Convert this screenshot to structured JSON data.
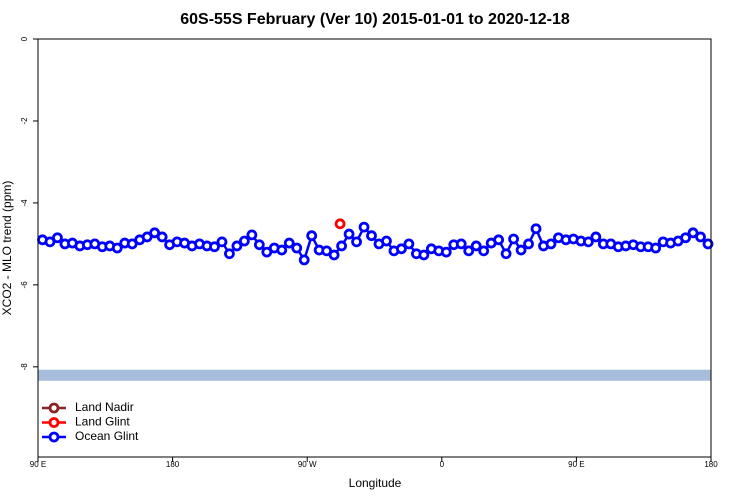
{
  "chart_data": {
    "type": "line",
    "title": "60S-55S February (Ver 10)   2015-01-01 to 2020-12-18",
    "xlabel": "Longitude",
    "ylabel": "XCO2 - MLO trend (ppm)",
    "xlim": [
      90,
      540
    ],
    "ylim": [
      -10.2,
      0
    ],
    "xticks": [
      {
        "value": 90,
        "label": "90 E"
      },
      180,
      {
        "value": 270,
        "label": "90 W"
      },
      {
        "value": 360,
        "label": "0"
      },
      {
        "value": 450,
        "label": "90 E"
      },
      {
        "value": 540,
        "label": "180"
      }
    ],
    "yticks": [
      0,
      -2,
      -4,
      -6,
      -8
    ],
    "coverage_band": {
      "ymin": -8.34,
      "ymax": -8.07,
      "color": "#a6bddb"
    },
    "legend": "bottom-left",
    "series": [
      {
        "name": "Land Nadir",
        "color": "#8b2323",
        "x": [],
        "values": []
      },
      {
        "name": "Land Glint",
        "color": "#ff0000",
        "x": [
          292
        ],
        "values": [
          -4.51
        ]
      },
      {
        "name": "Ocean Glint",
        "color": "#0000ff",
        "x": [
          93,
          98,
          103,
          108,
          113,
          118,
          123,
          128,
          133,
          138,
          143,
          148,
          153,
          158,
          163,
          168,
          173,
          178,
          183,
          188,
          193,
          198,
          203,
          208,
          213,
          218,
          223,
          228,
          233,
          238,
          243,
          248,
          253,
          258,
          263,
          268,
          273,
          278,
          283,
          288,
          293,
          298,
          303,
          308,
          313,
          318,
          323,
          328,
          333,
          338,
          343,
          348,
          353,
          358,
          363,
          368,
          373,
          378,
          383,
          388,
          393,
          398,
          403,
          408,
          413,
          418,
          423,
          428,
          433,
          438,
          443,
          448,
          453,
          458,
          463,
          468,
          473,
          478,
          483,
          488,
          493,
          498,
          503,
          508,
          513,
          518,
          523,
          528,
          533,
          538
        ],
        "values": [
          -4.9,
          -4.95,
          -4.85,
          -5.0,
          -4.98,
          -5.05,
          -5.02,
          -5.0,
          -5.07,
          -5.05,
          -5.1,
          -4.98,
          -5.0,
          -4.9,
          -4.83,
          -4.73,
          -4.83,
          -5.02,
          -4.95,
          -4.98,
          -5.05,
          -5.0,
          -5.05,
          -5.07,
          -4.95,
          -5.24,
          -5.05,
          -4.93,
          -4.78,
          -5.02,
          -5.2,
          -5.1,
          -5.15,
          -4.98,
          -5.1,
          -5.39,
          -4.8,
          -5.15,
          -5.17,
          -5.27,
          -5.05,
          -4.76,
          -4.95,
          -4.59,
          -4.8,
          -5.0,
          -4.93,
          -5.17,
          -5.12,
          -5.0,
          -5.24,
          -5.27,
          -5.12,
          -5.17,
          -5.2,
          -5.02,
          -5.0,
          -5.17,
          -5.05,
          -5.17,
          -4.98,
          -4.9,
          -5.24,
          -4.88,
          -5.15,
          -5.0,
          -4.63,
          -5.05,
          -5.0,
          -4.85,
          -4.9,
          -4.88,
          -4.93,
          -4.95,
          -4.83,
          -5.0,
          -5.0,
          -5.07,
          -5.05,
          -5.02,
          -5.07,
          -5.07,
          -5.1,
          -4.95,
          -4.98,
          -4.93,
          -4.85,
          -4.73,
          -4.83,
          -5.0
        ]
      }
    ]
  }
}
